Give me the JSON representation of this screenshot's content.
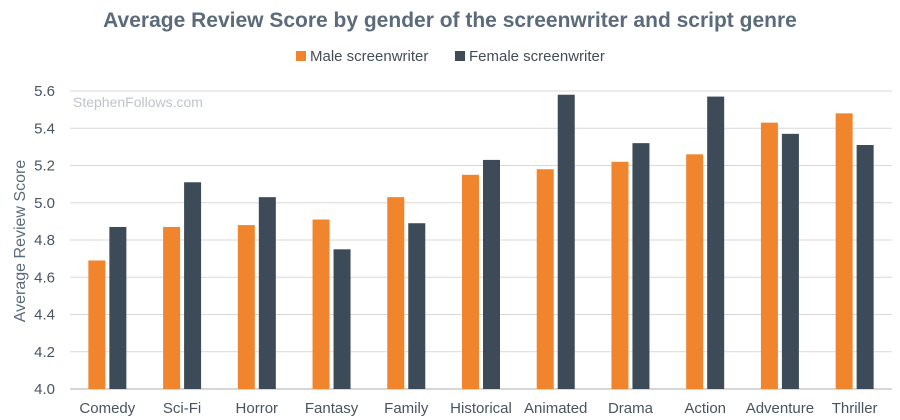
{
  "chart_data": {
    "type": "bar",
    "title": "Average Review Score by gender of the screenwriter and script genre",
    "ylabel": "Average Review Score",
    "xlabel": "",
    "watermark": "StephenFollows.com",
    "ylim": [
      4.0,
      5.6
    ],
    "yticks": [
      4.0,
      4.2,
      4.4,
      4.6,
      4.8,
      5.0,
      5.2,
      5.4,
      5.6
    ],
    "grid": true,
    "legend_position": "top-center",
    "categories": [
      "Comedy",
      "Sci-Fi",
      "Horror",
      "Fantasy",
      "Family",
      "Historical",
      "Animated",
      "Drama",
      "Action",
      "Adventure",
      "Thriller"
    ],
    "series": [
      {
        "name": "Male screenwriter",
        "color": "#f0852d",
        "values": [
          4.69,
          4.87,
          4.88,
          4.91,
          5.03,
          5.15,
          5.18,
          5.22,
          5.26,
          5.43,
          5.48
        ]
      },
      {
        "name": "Female screenwriter",
        "color": "#3d4a57",
        "values": [
          4.87,
          5.11,
          5.03,
          4.75,
          4.89,
          5.23,
          5.58,
          5.32,
          5.57,
          5.37,
          5.31
        ]
      }
    ]
  }
}
